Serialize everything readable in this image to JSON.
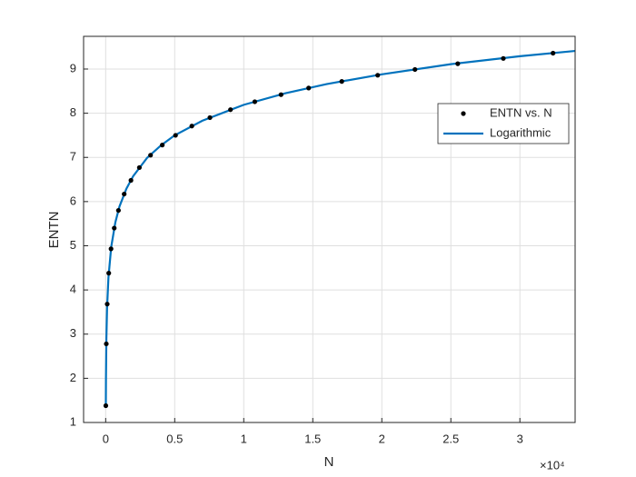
{
  "chart_data": {
    "type": "line",
    "xlabel": "N",
    "ylabel": "ENTN",
    "x_exponent_label": "×10⁴",
    "xlim": [
      -1600,
      34000
    ],
    "ylim": [
      1,
      9.74
    ],
    "xticks": [
      0,
      {
        "value": 5000,
        "label": "0.5"
      },
      {
        "value": 10000,
        "label": "1"
      },
      {
        "value": 15000,
        "label": "1.5"
      },
      {
        "value": 20000,
        "label": "2"
      },
      {
        "value": 25000,
        "label": "2.5"
      },
      {
        "value": 30000,
        "label": "3"
      }
    ],
    "yticks": [
      1,
      2,
      3,
      4,
      5,
      6,
      7,
      8,
      9
    ],
    "grid": true,
    "legend": "northeast",
    "series": [
      {
        "name": "ENTN vs. N",
        "type": "scatter",
        "color": "#000000",
        "x": [
          11,
          45,
          111,
          223,
          387,
          620,
          925,
          1340,
          1830,
          2440,
          3250,
          4100,
          5060,
          6240,
          7550,
          9040,
          10800,
          12700,
          14700,
          17100,
          19700,
          22400,
          25500,
          28800,
          32400
        ],
        "values": [
          1.38,
          2.78,
          3.68,
          4.38,
          4.93,
          5.4,
          5.8,
          6.17,
          6.48,
          6.77,
          7.05,
          7.28,
          7.5,
          7.71,
          7.9,
          8.08,
          8.26,
          8.42,
          8.57,
          8.72,
          8.86,
          8.99,
          9.12,
          9.24,
          9.36
        ]
      },
      {
        "name": "Logarithmic",
        "type": "line",
        "color": "#0072bd",
        "x": [
          11,
          20,
          50,
          100,
          200,
          400,
          700,
          1000,
          1500,
          2000,
          3000,
          4000,
          5000,
          7000,
          10000,
          13000,
          16000,
          20000,
          25000,
          30000,
          34000
        ],
        "values": [
          1.38,
          1.98,
          2.89,
          3.59,
          4.28,
          4.97,
          5.53,
          5.89,
          6.29,
          6.58,
          6.99,
          7.27,
          7.5,
          7.83,
          8.19,
          8.45,
          8.66,
          8.88,
          9.11,
          9.29,
          9.41
        ]
      }
    ]
  }
}
